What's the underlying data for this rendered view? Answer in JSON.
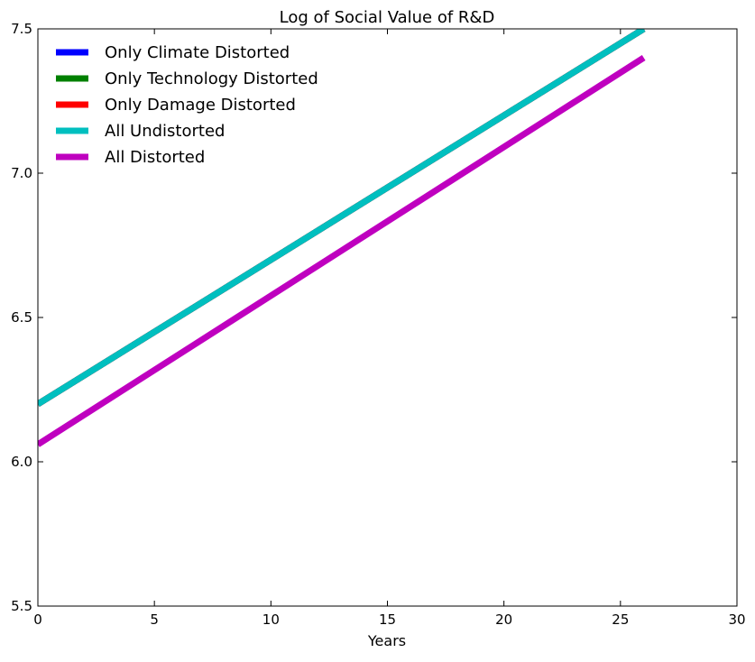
{
  "chart_data": {
    "type": "line",
    "title": "Log of Social Value of R&D",
    "xlabel": "Years",
    "ylabel": "",
    "xlim": [
      0,
      30
    ],
    "ylim": [
      5.5,
      7.5
    ],
    "xticks": [
      "0",
      "5",
      "10",
      "15",
      "20",
      "25",
      "30"
    ],
    "yticks": [
      "5.5",
      "6.0",
      "6.5",
      "7.0",
      "7.5"
    ],
    "grid": false,
    "legend_position": "top-left",
    "series": [
      {
        "name": "Only Climate Distorted",
        "color": "#0000ff",
        "x": [
          0,
          26
        ],
        "y": [
          6.2,
          7.5
        ]
      },
      {
        "name": "Only Technology Distorted",
        "color": "#008000",
        "x": [
          0,
          26
        ],
        "y": [
          6.2,
          7.5
        ]
      },
      {
        "name": "Only Damage Distorted",
        "color": "#ff0000",
        "x": [
          0,
          26
        ],
        "y": [
          6.2,
          7.5
        ]
      },
      {
        "name": "All Undistorted",
        "color": "#00bfbf",
        "x": [
          0,
          26
        ],
        "y": [
          6.2,
          7.5
        ]
      },
      {
        "name": "All Distorted",
        "color": "#bf00bf",
        "x": [
          0,
          26
        ],
        "y": [
          6.06,
          7.4
        ]
      }
    ]
  }
}
